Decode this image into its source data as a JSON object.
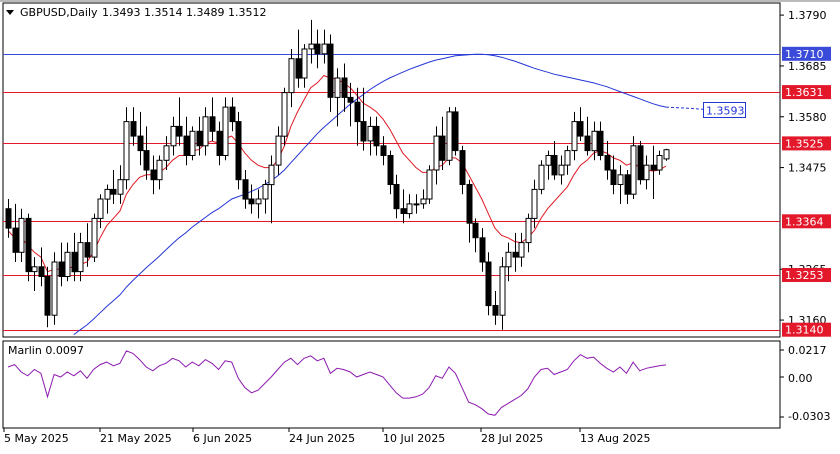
{
  "header": {
    "symbol_line": "GBPUSD,Daily",
    "ohlc": "1.3493 1.3514 1.3489 1.3512"
  },
  "indicator": {
    "label": "Marlin 0.0097",
    "scale_top": "0.0217",
    "scale_mid": "0.00",
    "scale_bottom": "-0.0303"
  },
  "price_axis": {
    "ticks": [
      "1.3790",
      "1.3685",
      "1.3580",
      "1.3475",
      "1.3265",
      "1.3160"
    ],
    "min": 1.3125,
    "max": 1.3815
  },
  "levels": [
    {
      "value": 1.371,
      "label": "1.3710",
      "color": "#3b4bd9",
      "kind": "blue"
    },
    {
      "value": 1.3631,
      "label": "1.3631",
      "color": "#e3192b",
      "kind": "red"
    },
    {
      "value": 1.3525,
      "label": "1.3525",
      "color": "#e3192b",
      "kind": "red"
    },
    {
      "value": 1.3364,
      "label": "1.3364",
      "color": "#e3192b",
      "kind": "red"
    },
    {
      "value": 1.3253,
      "label": "1.3253",
      "color": "#e3192b",
      "kind": "red"
    },
    {
      "value": 1.314,
      "label": "1.3140",
      "color": "#e3192b",
      "kind": "red"
    }
  ],
  "ma_label": {
    "value": 1.3593,
    "label": "1.3593",
    "color": "#2436d6"
  },
  "date_axis": [
    "5 May 2025",
    "21 May 2025",
    "6 Jun 2025",
    "24 Jun 2025",
    "10 Jul 2025",
    "28 Jul 2025",
    "13 Aug 2025"
  ],
  "chart_data": {
    "type": "candlestick",
    "up_color": "#ffffff",
    "down_color": "#000000",
    "fast_ma_color": "#e01a24",
    "slow_ma_color": "#2436d6",
    "osc_color": "#8c1ab0",
    "candles": [
      [
        1.339,
        1.341,
        1.333,
        1.335
      ],
      [
        1.335,
        1.34,
        1.328,
        1.33
      ],
      [
        1.33,
        1.339,
        1.328,
        1.337
      ],
      [
        1.337,
        1.338,
        1.324,
        1.326
      ],
      [
        1.326,
        1.329,
        1.322,
        1.327
      ],
      [
        1.327,
        1.331,
        1.323,
        1.325
      ],
      [
        1.325,
        1.327,
        1.3145,
        1.317
      ],
      [
        1.317,
        1.33,
        1.315,
        1.328
      ],
      [
        1.328,
        1.332,
        1.323,
        1.325
      ],
      [
        1.325,
        1.332,
        1.324,
        1.33
      ],
      [
        1.33,
        1.334,
        1.324,
        1.326
      ],
      [
        1.326,
        1.334,
        1.324,
        1.332
      ],
      [
        1.332,
        1.336,
        1.327,
        1.329
      ],
      [
        1.329,
        1.338,
        1.328,
        1.337
      ],
      [
        1.337,
        1.342,
        1.335,
        1.341
      ],
      [
        1.341,
        1.344,
        1.338,
        1.343
      ],
      [
        1.343,
        1.347,
        1.34,
        1.342
      ],
      [
        1.342,
        1.348,
        1.34,
        1.345
      ],
      [
        1.345,
        1.36,
        1.343,
        1.357
      ],
      [
        1.357,
        1.36,
        1.352,
        1.354
      ],
      [
        1.354,
        1.359,
        1.348,
        1.351
      ],
      [
        1.351,
        1.356,
        1.345,
        1.347
      ],
      [
        1.347,
        1.35,
        1.342,
        1.345
      ],
      [
        1.345,
        1.35,
        1.343,
        1.349
      ],
      [
        1.349,
        1.354,
        1.347,
        1.352
      ],
      [
        1.352,
        1.358,
        1.35,
        1.356
      ],
      [
        1.356,
        1.362,
        1.352,
        1.354
      ],
      [
        1.354,
        1.358,
        1.348,
        1.35
      ],
      [
        1.35,
        1.356,
        1.349,
        1.355
      ],
      [
        1.355,
        1.358,
        1.35,
        1.352
      ],
      [
        1.352,
        1.36,
        1.35,
        1.358
      ],
      [
        1.358,
        1.362,
        1.353,
        1.355
      ],
      [
        1.355,
        1.357,
        1.348,
        1.35
      ],
      [
        1.35,
        1.362,
        1.349,
        1.36
      ],
      [
        1.36,
        1.362,
        1.355,
        1.357
      ],
      [
        1.357,
        1.359,
        1.343,
        1.345
      ],
      [
        1.345,
        1.347,
        1.339,
        1.341
      ],
      [
        1.341,
        1.344,
        1.338,
        1.34
      ],
      [
        1.34,
        1.343,
        1.337,
        1.341
      ],
      [
        1.341,
        1.345,
        1.338,
        1.344
      ],
      [
        1.344,
        1.35,
        1.336,
        1.348
      ],
      [
        1.348,
        1.356,
        1.346,
        1.354
      ],
      [
        1.354,
        1.364,
        1.352,
        1.363
      ],
      [
        1.363,
        1.372,
        1.36,
        1.37
      ],
      [
        1.37,
        1.376,
        1.364,
        1.366
      ],
      [
        1.366,
        1.373,
        1.364,
        1.372
      ],
      [
        1.372,
        1.378,
        1.369,
        1.373
      ],
      [
        1.373,
        1.376,
        1.368,
        1.371
      ],
      [
        1.371,
        1.376,
        1.369,
        1.373
      ],
      [
        1.373,
        1.375,
        1.359,
        1.362
      ],
      [
        1.362,
        1.368,
        1.356,
        1.366
      ],
      [
        1.366,
        1.369,
        1.359,
        1.362
      ],
      [
        1.362,
        1.365,
        1.356,
        1.361
      ],
      [
        1.361,
        1.364,
        1.352,
        1.357
      ],
      [
        1.357,
        1.364,
        1.351,
        1.353
      ],
      [
        1.353,
        1.358,
        1.35,
        1.356
      ],
      [
        1.356,
        1.358,
        1.35,
        1.352
      ],
      [
        1.352,
        1.354,
        1.348,
        1.35
      ],
      [
        1.35,
        1.351,
        1.342,
        1.344
      ],
      [
        1.344,
        1.346,
        1.337,
        1.339
      ],
      [
        1.339,
        1.343,
        1.336,
        1.338
      ],
      [
        1.338,
        1.342,
        1.337,
        1.34
      ],
      [
        1.34,
        1.342,
        1.338,
        1.34
      ],
      [
        1.34,
        1.343,
        1.339,
        1.341
      ],
      [
        1.341,
        1.348,
        1.34,
        1.347
      ],
      [
        1.347,
        1.356,
        1.344,
        1.354
      ],
      [
        1.354,
        1.358,
        1.347,
        1.349
      ],
      [
        1.349,
        1.36,
        1.348,
        1.359
      ],
      [
        1.359,
        1.36,
        1.35,
        1.351
      ],
      [
        1.351,
        1.352,
        1.342,
        1.344
      ],
      [
        1.344,
        1.345,
        1.332,
        1.336
      ],
      [
        1.336,
        1.337,
        1.33,
        1.333
      ],
      [
        1.333,
        1.335,
        1.326,
        1.328
      ],
      [
        1.328,
        1.33,
        1.317,
        1.319
      ],
      [
        1.319,
        1.322,
        1.315,
        1.317
      ],
      [
        1.317,
        1.329,
        1.314,
        1.327
      ],
      [
        1.327,
        1.332,
        1.324,
        1.33
      ],
      [
        1.33,
        1.334,
        1.326,
        1.329
      ],
      [
        1.329,
        1.334,
        1.327,
        1.332
      ],
      [
        1.332,
        1.338,
        1.33,
        1.337
      ],
      [
        1.337,
        1.345,
        1.335,
        1.343
      ],
      [
        1.343,
        1.349,
        1.342,
        1.348
      ],
      [
        1.348,
        1.351,
        1.345,
        1.35
      ],
      [
        1.35,
        1.353,
        1.345,
        1.346
      ],
      [
        1.346,
        1.35,
        1.344,
        1.348
      ],
      [
        1.348,
        1.352,
        1.346,
        1.351
      ],
      [
        1.351,
        1.359,
        1.349,
        1.357
      ],
      [
        1.357,
        1.36,
        1.353,
        1.354
      ],
      [
        1.354,
        1.358,
        1.35,
        1.351
      ],
      [
        1.351,
        1.357,
        1.349,
        1.355
      ],
      [
        1.355,
        1.357,
        1.349,
        1.35
      ],
      [
        1.35,
        1.353,
        1.345,
        1.347
      ],
      [
        1.347,
        1.35,
        1.342,
        1.344
      ],
      [
        1.344,
        1.348,
        1.34,
        1.346
      ],
      [
        1.346,
        1.347,
        1.34,
        1.342
      ],
      [
        1.342,
        1.354,
        1.341,
        1.352
      ],
      [
        1.352,
        1.353,
        1.344,
        1.345
      ],
      [
        1.345,
        1.35,
        1.343,
        1.348
      ],
      [
        1.348,
        1.352,
        1.341,
        1.347
      ],
      [
        1.347,
        1.351,
        1.346,
        1.35
      ],
      [
        1.3493,
        1.3514,
        1.3489,
        1.3512
      ]
    ],
    "fast_ma": [
      1.3345,
      1.333,
      1.333,
      1.3315,
      1.33,
      1.329,
      1.326,
      1.3265,
      1.3265,
      1.327,
      1.3268,
      1.3275,
      1.328,
      1.33,
      1.333,
      1.3355,
      1.337,
      1.3385,
      1.342,
      1.344,
      1.3455,
      1.346,
      1.346,
      1.3465,
      1.3475,
      1.349,
      1.35,
      1.35,
      1.351,
      1.3512,
      1.3525,
      1.353,
      1.3525,
      1.3535,
      1.354,
      1.3525,
      1.3505,
      1.349,
      1.348,
      1.3475,
      1.3475,
      1.349,
      1.352,
      1.356,
      1.359,
      1.3615,
      1.364,
      1.365,
      1.3665,
      1.366,
      1.3658,
      1.365,
      1.364,
      1.3625,
      1.3608,
      1.36,
      1.359,
      1.3575,
      1.3555,
      1.353,
      1.3505,
      1.349,
      1.3475,
      1.3465,
      1.3465,
      1.3475,
      1.348,
      1.3495,
      1.3495,
      1.3485,
      1.346,
      1.3435,
      1.341,
      1.338,
      1.335,
      1.3335,
      1.333,
      1.3322,
      1.332,
      1.333,
      1.3345,
      1.337,
      1.339,
      1.3405,
      1.342,
      1.3435,
      1.346,
      1.348,
      1.349,
      1.3505,
      1.351,
      1.3505,
      1.3495,
      1.349,
      1.348,
      1.3485,
      1.3475,
      1.347,
      1.3468,
      1.347,
      1.3478
    ],
    "slow_ma": [
      1.3035,
      1.3045,
      1.3055,
      1.3065,
      1.3075,
      1.3082,
      1.309,
      1.31,
      1.311,
      1.312,
      1.313,
      1.314,
      1.315,
      1.3162,
      1.3175,
      1.3188,
      1.32,
      1.3212,
      1.3228,
      1.3242,
      1.3255,
      1.3268,
      1.328,
      1.3292,
      1.3305,
      1.3318,
      1.333,
      1.334,
      1.3352,
      1.3362,
      1.3372,
      1.3382,
      1.339,
      1.34,
      1.341,
      1.3415,
      1.342,
      1.3426,
      1.3432,
      1.344,
      1.3448,
      1.3458,
      1.347,
      1.3485,
      1.35,
      1.3515,
      1.353,
      1.3545,
      1.3558,
      1.357,
      1.3582,
      1.3594,
      1.3606,
      1.3616,
      1.3626,
      1.3636,
      1.3645,
      1.3653,
      1.366,
      1.3666,
      1.3672,
      1.3678,
      1.3683,
      1.3688,
      1.3693,
      1.3697,
      1.37,
      1.3703,
      1.3706,
      1.3707,
      1.3708,
      1.3709,
      1.3709,
      1.3708,
      1.3706,
      1.3703,
      1.3699,
      1.3695,
      1.369,
      1.3685,
      1.368,
      1.3676,
      1.3672,
      1.3668,
      1.3665,
      1.3662,
      1.3659,
      1.3656,
      1.3653,
      1.365,
      1.3646,
      1.3642,
      1.3637,
      1.3632,
      1.3627,
      1.3622,
      1.3617,
      1.3612,
      1.3607,
      1.3603,
      1.36
    ],
    "slow_ma_projection": [
      1.36,
      1.3597,
      1.3593
    ],
    "oscillator": [
      0.008,
      0.01,
      0.004,
      0.001,
      0.006,
      0.003,
      -0.015,
      0.002,
      0.0,
      0.004,
      0.001,
      0.005,
      -0.001,
      0.006,
      0.01,
      0.012,
      0.009,
      0.011,
      0.021,
      0.019,
      0.014,
      0.008,
      0.005,
      0.009,
      0.011,
      0.015,
      0.013,
      0.008,
      0.012,
      0.009,
      0.014,
      0.011,
      0.006,
      0.013,
      0.012,
      -0.001,
      -0.008,
      -0.012,
      -0.01,
      -0.005,
      0.0,
      0.006,
      0.012,
      0.015,
      0.01,
      0.015,
      0.017,
      0.013,
      0.015,
      0.003,
      0.007,
      0.006,
      0.004,
      0.0,
      0.002,
      0.004,
      0.002,
      0.0,
      -0.006,
      -0.012,
      -0.016,
      -0.016,
      -0.015,
      -0.013,
      -0.008,
      0.001,
      -0.001,
      0.008,
      0.003,
      -0.008,
      -0.019,
      -0.021,
      -0.024,
      -0.028,
      -0.029,
      -0.023,
      -0.02,
      -0.017,
      -0.014,
      -0.009,
      0.0,
      0.006,
      0.007,
      0.002,
      0.004,
      0.006,
      0.013,
      0.018,
      0.015,
      0.016,
      0.011,
      0.007,
      0.004,
      0.008,
      0.003,
      0.012,
      0.005,
      0.007,
      0.008,
      0.009,
      0.0097
    ]
  }
}
